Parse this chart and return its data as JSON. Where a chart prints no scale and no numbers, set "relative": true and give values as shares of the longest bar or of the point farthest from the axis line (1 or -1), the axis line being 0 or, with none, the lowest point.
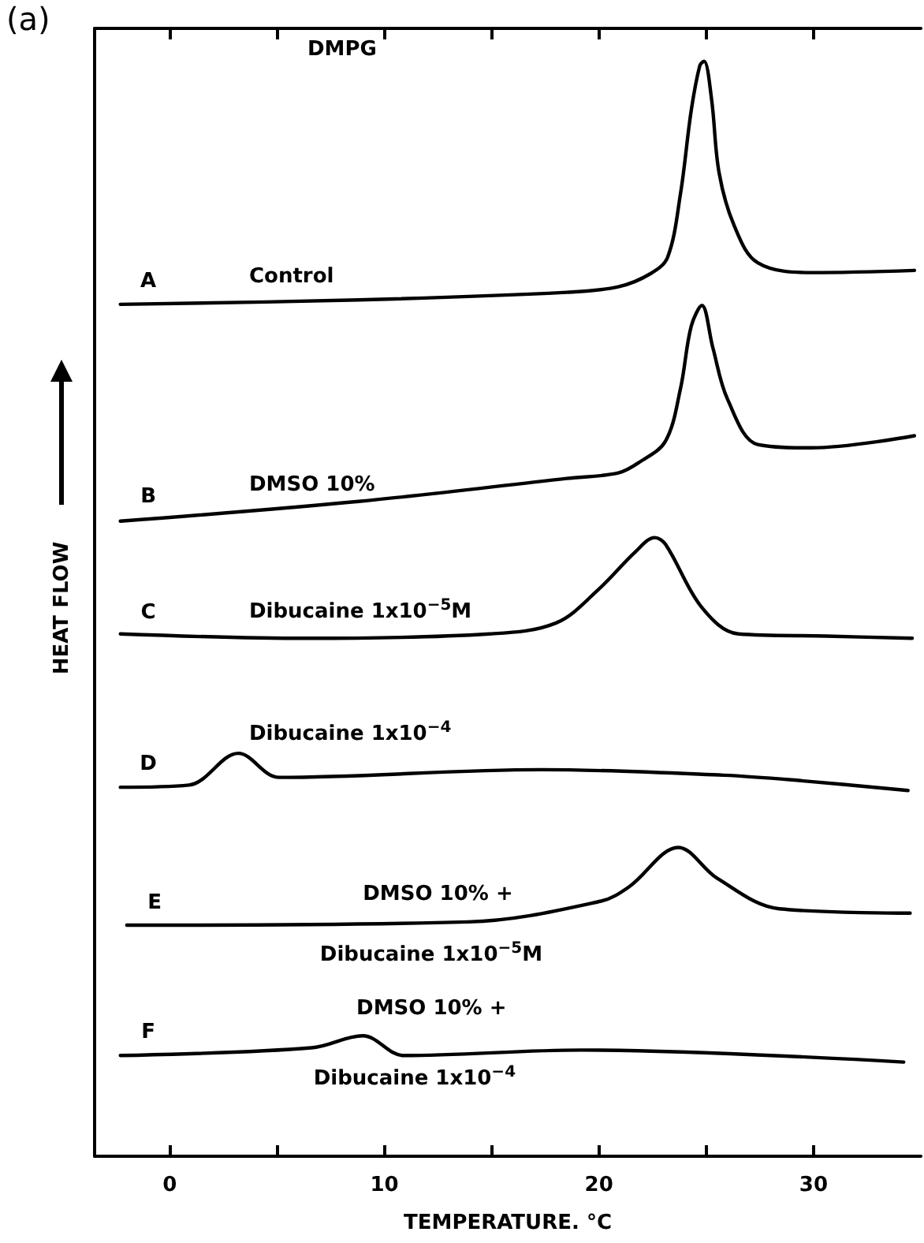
{
  "chart_data": {
    "type": "line",
    "title": "DMPG",
    "xlabel": "TEMPERATURE. °C",
    "ylabel": "HEAT FLOW",
    "relative": true,
    "xlim": [
      -3.5,
      35
    ],
    "xticks": [
      0,
      {
        "value": 5,
        "label": null
      },
      10,
      {
        "value": 15,
        "label": null
      },
      20,
      {
        "value": 25,
        "label": null
      },
      30
    ],
    "marker": "none",
    "line_style": "solid",
    "series": [
      {
        "name": "Control",
        "color": "#000000",
        "x": [
          -2.3,
          8.8,
          18.5,
          20.9,
          22.4,
          23.2,
          23.8,
          24.3,
          24.7,
          24.9,
          25.25,
          25.6,
          26.3,
          27.4,
          29.9,
          34.7
        ],
        "values": [
          0.778,
          0.782,
          0.789,
          0.794,
          0.806,
          0.821,
          0.879,
          0.955,
          0.996,
          1.0,
          0.965,
          0.898,
          0.85,
          0.816,
          0.807,
          0.809
        ]
      },
      {
        "name": "DMSO 10%",
        "color": "#000000",
        "x": [
          -2.3,
          8.8,
          18.5,
          20.9,
          21.9,
          23.1,
          23.8,
          24.3,
          24.8,
          25.3,
          26.0,
          27.4,
          29.9,
          34.7
        ],
        "values": [
          0.58,
          0.598,
          0.619,
          0.624,
          0.634,
          0.653,
          0.701,
          0.758,
          0.777,
          0.739,
          0.691,
          0.65,
          0.647,
          0.658
        ]
      },
      {
        "name": "Dibucaine 1x10$^{−5}$M",
        "color": "#000000",
        "x": [
          -2.3,
          6.4,
          14.9,
          18.0,
          20.0,
          21.7,
          22.6,
          23.1,
          24.8,
          26.5,
          30.6,
          34.6
        ],
        "values": [
          0.477,
          0.473,
          0.477,
          0.487,
          0.518,
          0.552,
          0.565,
          0.559,
          0.501,
          0.477,
          0.475,
          0.473
        ]
      },
      {
        "name": "Dibucaine 1x10$^{−4}$",
        "color": "#000000",
        "x": [
          -2.3,
          0.9,
          3.2,
          5.1,
          17.3,
          25.8,
          29.4,
          34.4
        ],
        "values": [
          0.337,
          0.339,
          0.368,
          0.346,
          0.353,
          0.348,
          0.343,
          0.334
        ]
      },
      {
        "name": "DMSO 10% +\nDibucaine 1x10$^{−5}$M",
        "color": "#000000",
        "x": [
          -2.0,
          13.9,
          20.1,
          21.4,
          23.7,
          25.5,
          28.4,
          34.5
        ],
        "values": [
          0.211,
          0.214,
          0.233,
          0.246,
          0.282,
          0.254,
          0.226,
          0.222
        ]
      },
      {
        "name": "DMSO 10% +\nDibucaine 1x10$^{−4}$",
        "color": "#000000",
        "x": [
          -2.3,
          6.6,
          9.0,
          10.9,
          19.2,
          34.2
        ],
        "values": [
          0.092,
          0.099,
          0.11,
          0.092,
          0.097,
          0.086
        ]
      }
    ],
    "annotations": [
      "(a)",
      "A",
      "B",
      "C",
      "D",
      "E",
      "F"
    ]
  }
}
